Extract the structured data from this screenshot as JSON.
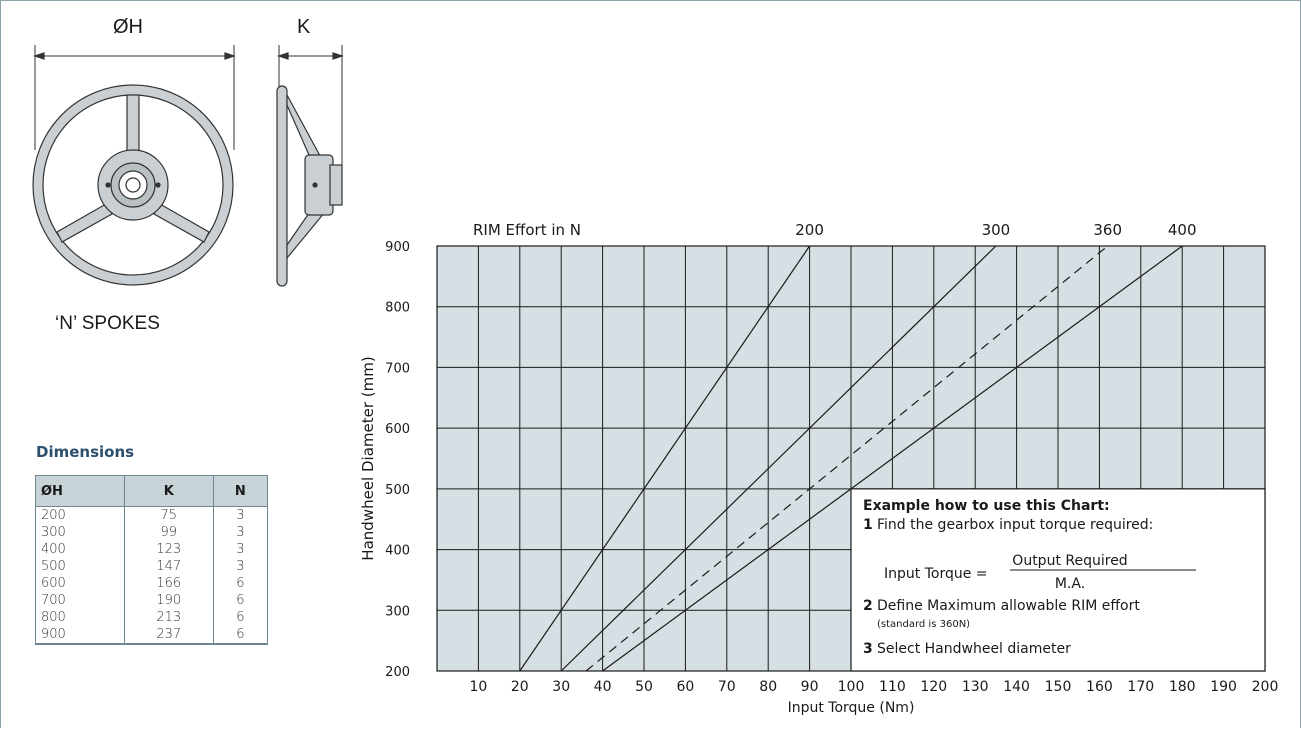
{
  "drawing": {
    "diameter_label": "ØH",
    "width_label": "K",
    "spokes_label": "‘N’ SPOKES"
  },
  "dimensions": {
    "title": "Dimensions",
    "headers": [
      "ØH",
      "K",
      "N"
    ],
    "rows": [
      [
        "200",
        "75",
        "3"
      ],
      [
        "300",
        "99",
        "3"
      ],
      [
        "400",
        "123",
        "3"
      ],
      [
        "500",
        "147",
        "3"
      ],
      [
        "600",
        "166",
        "6"
      ],
      [
        "700",
        "190",
        "6"
      ],
      [
        "800",
        "213",
        "6"
      ],
      [
        "900",
        "237",
        "6"
      ]
    ]
  },
  "colors": {
    "grid_fill": "#d6dfe3",
    "grid_line": "#1a1a1a",
    "heading": "#2c4f6e",
    "table_header": "#c8d3d8"
  },
  "chart_data": {
    "type": "line",
    "title": "",
    "xlabel": "Input Torque (Nm)",
    "ylabel": "Handwheel Diameter (mm)",
    "top_label": "RIM Effort in N",
    "xlim": [
      0,
      200
    ],
    "ylim": [
      200,
      900
    ],
    "x_ticks": [
      "10",
      "20",
      "30",
      "40",
      "50",
      "60",
      "70",
      "80",
      "90",
      "100",
      "110",
      "120",
      "130",
      "140",
      "150",
      "160",
      "170",
      "180",
      "190",
      "200"
    ],
    "y_ticks": [
      "200",
      "300",
      "400",
      "500",
      "600",
      "700",
      "800",
      "900"
    ],
    "grid": true,
    "series": [
      {
        "name": "200",
        "style": "solid",
        "points": [
          [
            20,
            200
          ],
          [
            90,
            900
          ]
        ]
      },
      {
        "name": "300",
        "style": "solid",
        "points": [
          [
            30,
            200
          ],
          [
            135,
            900
          ]
        ]
      },
      {
        "name": "360",
        "style": "dashed",
        "points": [
          [
            36,
            200
          ],
          [
            162,
            900
          ]
        ]
      },
      {
        "name": "400",
        "style": "solid",
        "points": [
          [
            40,
            200
          ],
          [
            180,
            900
          ]
        ]
      }
    ],
    "annotation": {
      "heading": "Example how to use this Chart:",
      "step1_num": "1",
      "step1": "Find the gearbox input torque required:",
      "formula_lhs": "Input Torque =",
      "formula_num": "Output Required",
      "formula_den": "M.A.",
      "step2_num": "2",
      "step2": "Define Maximum allowable RIM effort",
      "step2_note": "(standard is 360N)",
      "step3_num": "3",
      "step3": "Select Handwheel diameter"
    }
  }
}
